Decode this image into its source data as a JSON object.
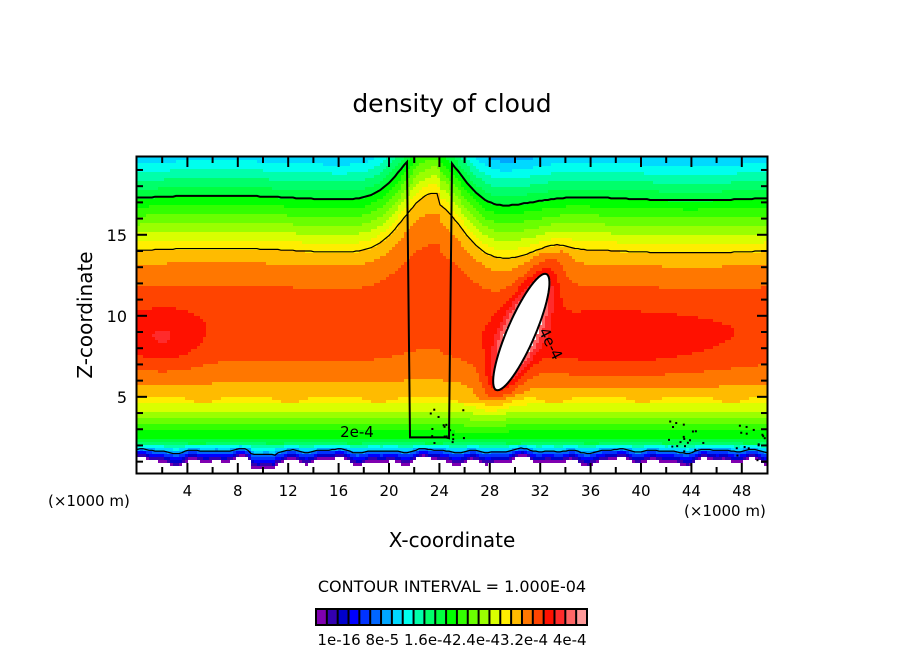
{
  "chart_data": {
    "type": "heatmap",
    "subtype": "filled-contour",
    "title": "density of cloud",
    "xlabel": "X-coordinate",
    "ylabel": "Z-coordinate",
    "x_units": "(×1000 m)",
    "x_units_right": "(×1000 m)",
    "xlim": [
      0,
      50
    ],
    "ylim": [
      0.3,
      19.8
    ],
    "x_major_ticks": [
      4,
      8,
      12,
      16,
      20,
      24,
      28,
      32,
      36,
      40,
      44,
      48
    ],
    "x_tick_labels": [
      "4",
      "8",
      "12",
      "16",
      "20",
      "24",
      "28",
      "32",
      "36",
      "40",
      "44",
      "48"
    ],
    "y_major_ticks": [
      5,
      10,
      15
    ],
    "y_tick_labels": [
      "5",
      "10",
      "15"
    ],
    "grid": false,
    "contour_interval_text": "CONTOUR INTERVAL = 1.000E-04",
    "contour_line_labels": [
      {
        "text": "2e-4",
        "x": 16.3,
        "z": 2.7
      },
      {
        "text": "4e-4",
        "x": 32.3,
        "z": 8.4
      }
    ],
    "max_region_label": "4e-4",
    "features": {
      "cloud_base_z_approx": 1.2,
      "plume_peak_x": 24,
      "plume_peak_z": 17.2,
      "max_density_region": {
        "x_range": [
          27,
          34
        ],
        "z_range": [
          5.5,
          12.7
        ],
        "value_above": 0.0004
      }
    },
    "colorbar": {
      "levels": 24,
      "colors": [
        "#7f00b0",
        "#3300b0",
        "#0000cc",
        "#0000ff",
        "#0033ff",
        "#0066ff",
        "#00a6ff",
        "#00d9ff",
        "#00ffee",
        "#00ffaa",
        "#00ff6a",
        "#00ff40",
        "#00ff00",
        "#33ff00",
        "#6aff00",
        "#9aff00",
        "#d9ff00",
        "#ffee00",
        "#ffbb00",
        "#ff7700",
        "#ff4400",
        "#ff1100",
        "#ff2b2b",
        "#ff6666",
        "#ff9999"
      ],
      "tick_labels": [
        "1e-16",
        "8e-5",
        "1.6e-4",
        "2.4e-4",
        "3.2e-4",
        "4e-4"
      ],
      "label_text": "1e-16 8e-5 1.6e-42.4e-43.2e-4 4e-4"
    }
  }
}
